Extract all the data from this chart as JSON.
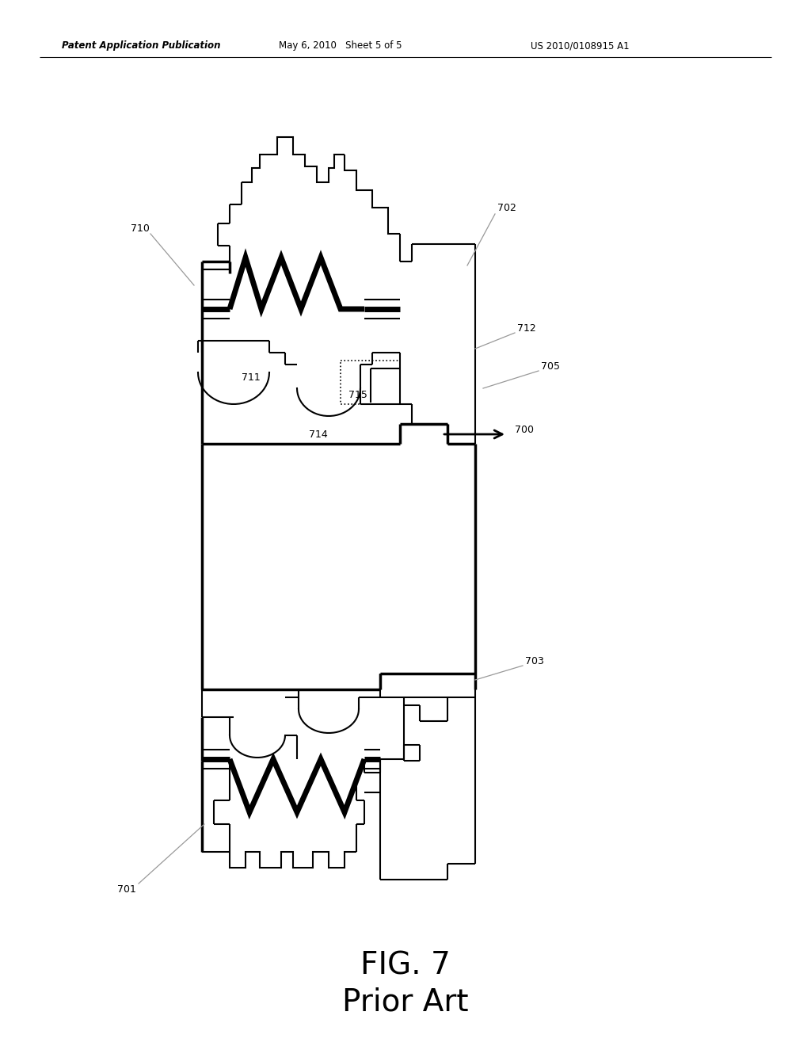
{
  "header_left": "Patent Application Publication",
  "header_center": "May 6, 2010   Sheet 5 of 5",
  "header_right": "US 2010/0108915 A1",
  "fig_label": "FIG. 7",
  "fig_sublabel": "Prior Art",
  "bg_color": "#ffffff"
}
